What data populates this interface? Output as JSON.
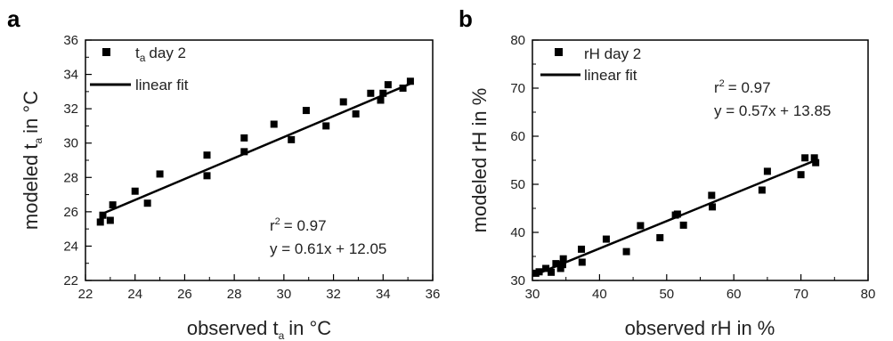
{
  "chart_data": [
    {
      "type": "scatter",
      "panel": "a",
      "xlabel": "observed t",
      "xlabel_sub": "a",
      "xlabel_unit": "in °C",
      "ylabel": "modeled t",
      "ylabel_sub": "a",
      "ylabel_unit": "in °C",
      "xlim": [
        22,
        36
      ],
      "ylim": [
        22,
        36
      ],
      "xticks": [
        "22",
        "24",
        "26",
        "28",
        "30",
        "32",
        "34",
        "36"
      ],
      "yticks": [
        "22",
        "24",
        "26",
        "28",
        "30",
        "32",
        "34",
        "36"
      ],
      "legend": {
        "placement": "top-left",
        "points_label": "t",
        "points_label_sub": "a",
        "points_label_rest": "day 2",
        "line_label": "linear fit"
      },
      "annotation": {
        "r2_prefix": "r",
        "r2_sup": "2",
        "r2_value": "= 0.97",
        "equation": "y = 0.61x + 12.05"
      },
      "fit": {
        "slope": 0.61,
        "intercept": 12.05,
        "x_range": [
          22.6,
          35.2
        ]
      },
      "series": [
        {
          "name": "t day 2",
          "x": [
            22.6,
            22.7,
            23.0,
            23.1,
            24.0,
            24.5,
            25.0,
            26.9,
            26.9,
            28.4,
            28.4,
            29.6,
            30.3,
            30.9,
            31.7,
            32.4,
            32.9,
            33.5,
            33.9,
            34.0,
            34.2,
            34.8,
            35.1
          ],
          "y": [
            25.4,
            25.8,
            25.5,
            26.4,
            27.2,
            26.5,
            28.2,
            28.1,
            29.3,
            29.5,
            30.3,
            31.1,
            30.2,
            31.9,
            31.0,
            32.4,
            31.7,
            32.9,
            32.5,
            32.9,
            33.4,
            33.2,
            33.6
          ]
        }
      ]
    },
    {
      "type": "scatter",
      "panel": "b",
      "xlabel": "observed rH in %",
      "ylabel": "modeled rH in %",
      "xlim": [
        30,
        80
      ],
      "ylim": [
        30,
        80
      ],
      "xticks": [
        "30",
        "40",
        "50",
        "60",
        "70",
        "80"
      ],
      "yticks": [
        "30",
        "40",
        "50",
        "60",
        "70",
        "80"
      ],
      "legend": {
        "placement": "top-left",
        "points_label": "rH day 2",
        "line_label": "linear fit"
      },
      "annotation": {
        "r2_prefix": "r",
        "r2_sup": "2",
        "r2_value": "= 0.97",
        "equation": "y = 0.57x + 13.85"
      },
      "fit": {
        "slope": 0.57,
        "intercept": 13.85,
        "x_range": [
          30.5,
          72.3
        ]
      },
      "series": [
        {
          "name": "rH day 2",
          "x": [
            30.5,
            31.0,
            32.0,
            32.8,
            33.5,
            34.2,
            34.5,
            34.6,
            37.3,
            37.4,
            41.0,
            44.0,
            46.1,
            49.0,
            51.3,
            51.6,
            52.5,
            56.7,
            56.8,
            64.2,
            65.0,
            70.0,
            70.6,
            72.0,
            72.2
          ],
          "y": [
            31.5,
            31.8,
            32.5,
            31.7,
            33.5,
            32.5,
            33.3,
            34.5,
            36.5,
            33.8,
            38.6,
            36.0,
            41.4,
            38.9,
            43.6,
            43.8,
            41.5,
            47.7,
            45.3,
            48.8,
            52.7,
            52.0,
            55.5,
            55.5,
            54.5
          ]
        }
      ]
    }
  ]
}
